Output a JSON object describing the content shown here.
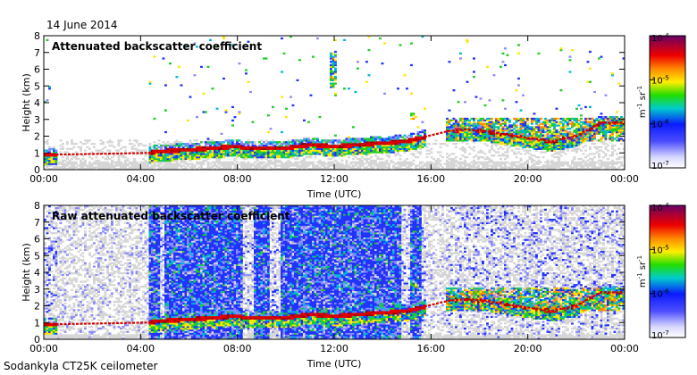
{
  "figure": {
    "date": "14 June 2014",
    "footer": "Sodankyla CT25K ceilometer"
  },
  "chart_data": [
    {
      "type": "heatmap",
      "title": "Attenuated backscatter coefficient",
      "xlabel": "Time (UTC)",
      "ylabel": "Height (km)",
      "xlim": [
        0,
        24
      ],
      "ylim": [
        0,
        8
      ],
      "x_ticks": [
        0,
        4,
        8,
        12,
        16,
        20,
        24
      ],
      "x_tick_labels": [
        "00:00",
        "04:00",
        "08:00",
        "12:00",
        "16:00",
        "20:00",
        "00:00"
      ],
      "y_ticks": [
        0,
        1,
        2,
        3,
        4,
        5,
        6,
        7,
        8
      ],
      "y_tick_labels": [
        "0",
        "1",
        "2",
        "3",
        "4",
        "5",
        "6",
        "7",
        "8"
      ],
      "colorbar": {
        "scale": "log",
        "range": [
          1e-07,
          0.0001
        ],
        "tick_base": "10",
        "tick_exponents": [
          "-7",
          "-6",
          "-5",
          "-4"
        ],
        "label_base": "m",
        "label_exp1": "-1",
        "label_mid": " sr",
        "label_exp2": "-1"
      },
      "profile": {
        "boundary_layer_km": [
          [
            0.0,
            0.9
          ],
          [
            0.6,
            0.9
          ],
          [
            4.3,
            1.0
          ],
          [
            4.7,
            1.1
          ],
          [
            6.0,
            1.2
          ],
          [
            8.0,
            1.4
          ],
          [
            8.3,
            1.3
          ],
          [
            9.0,
            1.3
          ],
          [
            10.0,
            1.3
          ],
          [
            11.0,
            1.5
          ],
          [
            12.0,
            1.4
          ],
          [
            13.0,
            1.5
          ],
          [
            14.0,
            1.6
          ],
          [
            15.0,
            1.7
          ],
          [
            16.7,
            2.3
          ],
          [
            17.5,
            2.4
          ],
          [
            18.3,
            2.3
          ],
          [
            19.0,
            2.1
          ],
          [
            19.5,
            2.0
          ],
          [
            20.5,
            1.8
          ],
          [
            21.0,
            1.7
          ],
          [
            22.0,
            2.0
          ],
          [
            23.0,
            2.8
          ],
          [
            24.0,
            2.8
          ]
        ],
        "signal_gaps_hours": [
          [
            0.6,
            4.3
          ],
          [
            15.8,
            16.6
          ]
        ],
        "cloud_features": [
          {
            "t_start": 11.8,
            "t_end": 12.1,
            "h_bottom": 4.8,
            "h_top": 7.0
          },
          {
            "t_start": 15.1,
            "t_end": 15.4,
            "h_bottom": 3.0,
            "h_top": 3.4
          },
          {
            "t_start": 16.6,
            "t_end": 24.0,
            "h_bottom": 1.7,
            "h_top": 3.1
          }
        ]
      }
    },
    {
      "type": "heatmap",
      "title": "Raw attenuated backscatter coefficient",
      "xlabel": "Time (UTC)",
      "ylabel": "Height (km)",
      "xlim": [
        0,
        24
      ],
      "ylim": [
        0,
        8
      ],
      "x_ticks": [
        0,
        4,
        8,
        12,
        16,
        20,
        24
      ],
      "x_tick_labels": [
        "00:00",
        "04:00",
        "08:00",
        "12:00",
        "16:00",
        "20:00",
        "00:00"
      ],
      "y_ticks": [
        0,
        1,
        2,
        3,
        4,
        5,
        6,
        7,
        8
      ],
      "y_tick_labels": [
        "0",
        "1",
        "2",
        "3",
        "4",
        "5",
        "6",
        "7",
        "8"
      ],
      "colorbar": {
        "scale": "log",
        "range": [
          1e-07,
          0.0001
        ],
        "tick_base": "10",
        "tick_exponents": [
          "-7",
          "-6",
          "-5",
          "-4"
        ],
        "label_base": "m",
        "label_exp1": "-1",
        "label_mid": " sr",
        "label_exp2": "-1"
      },
      "profile": {
        "boundary_layer_km": [
          [
            0.0,
            0.9
          ],
          [
            0.6,
            0.9
          ],
          [
            4.3,
            1.0
          ],
          [
            4.7,
            1.1
          ],
          [
            6.0,
            1.2
          ],
          [
            8.0,
            1.4
          ],
          [
            8.3,
            1.3
          ],
          [
            9.0,
            1.3
          ],
          [
            10.0,
            1.3
          ],
          [
            11.0,
            1.5
          ],
          [
            12.0,
            1.4
          ],
          [
            13.0,
            1.5
          ],
          [
            14.0,
            1.6
          ],
          [
            15.0,
            1.7
          ],
          [
            16.7,
            2.3
          ],
          [
            17.5,
            2.4
          ],
          [
            18.3,
            2.3
          ],
          [
            19.0,
            2.1
          ],
          [
            19.5,
            2.0
          ],
          [
            20.5,
            1.8
          ],
          [
            21.0,
            1.7
          ],
          [
            22.0,
            2.0
          ],
          [
            23.0,
            2.8
          ],
          [
            24.0,
            2.8
          ]
        ],
        "signal_gaps_hours": [
          [
            0.6,
            4.3
          ],
          [
            15.8,
            16.6
          ]
        ],
        "dense_noise_bands_hours": [
          [
            4.3,
            4.8
          ],
          [
            5.0,
            8.2
          ],
          [
            8.7,
            9.3
          ],
          [
            9.8,
            14.8
          ],
          [
            15.1,
            15.6
          ]
        ],
        "cloud_features": [
          {
            "t_start": 15.1,
            "t_end": 15.4,
            "h_bottom": 3.0,
            "h_top": 3.4
          },
          {
            "t_start": 16.6,
            "t_end": 24.0,
            "h_bottom": 1.7,
            "h_top": 3.1
          }
        ]
      }
    }
  ]
}
